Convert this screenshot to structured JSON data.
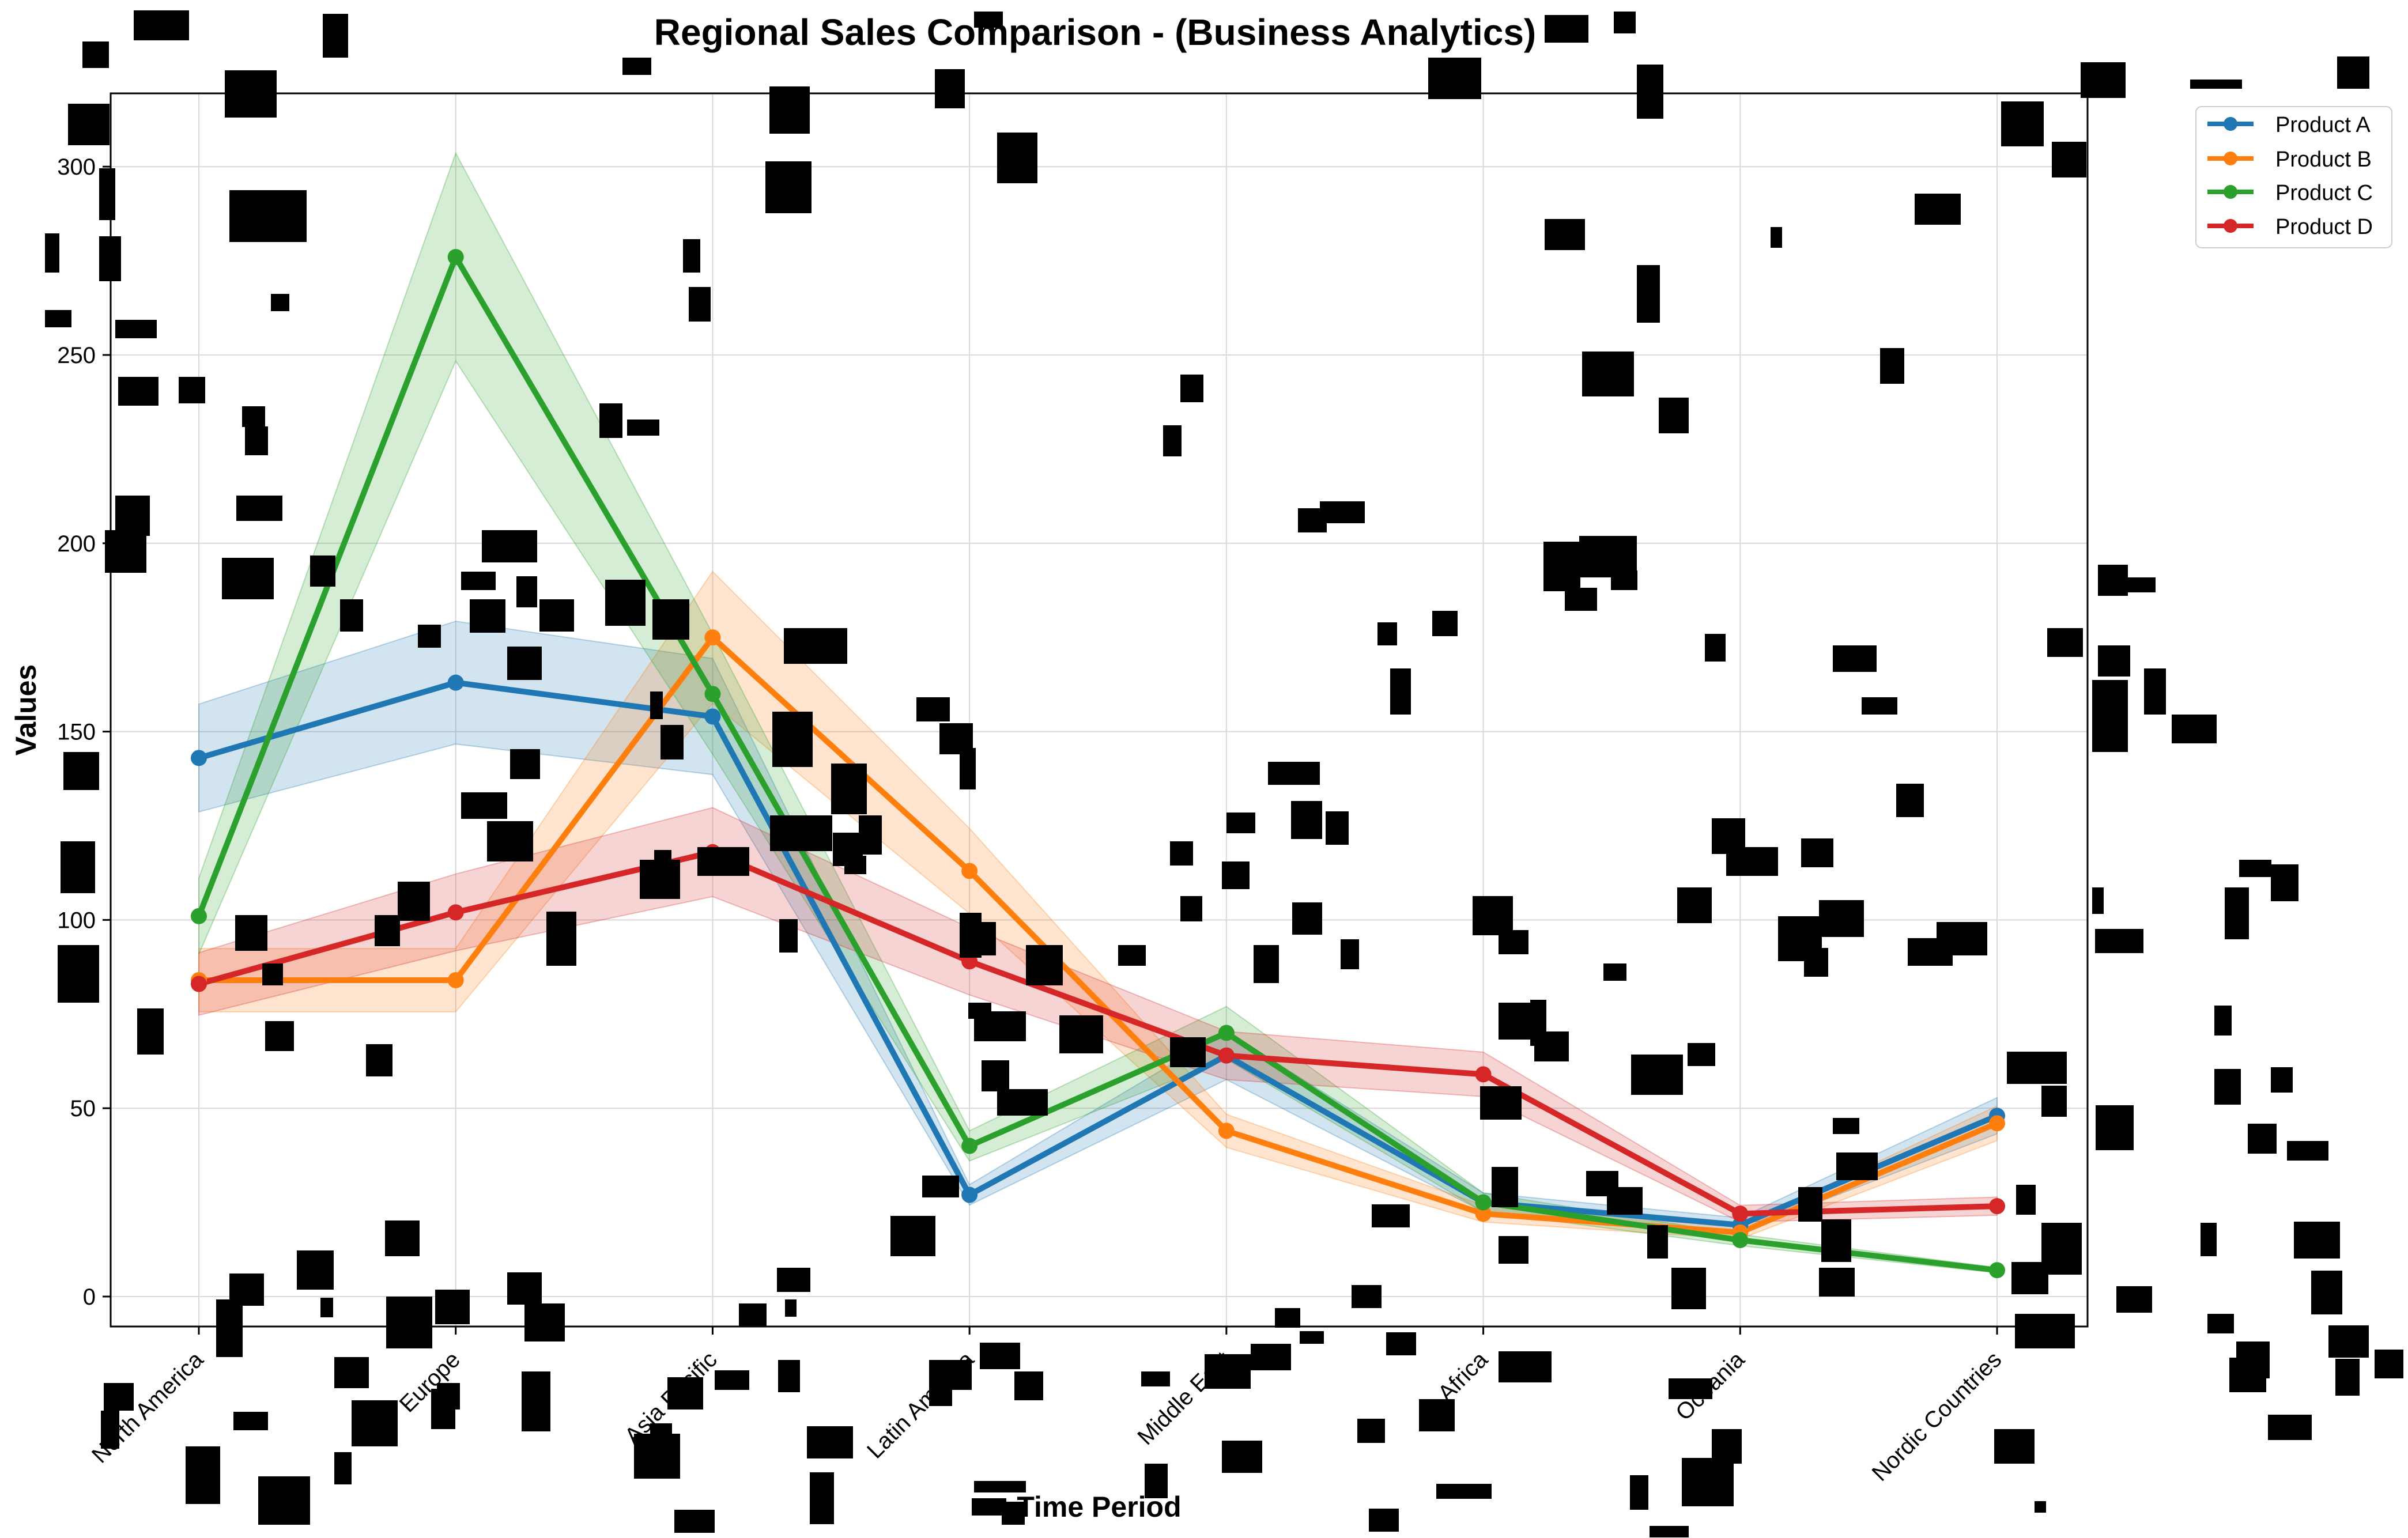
{
  "chart_data": {
    "type": "line",
    "title": "Regional Sales Comparison - (Business Analytics)",
    "xlabel": "Time Period",
    "ylabel": "Values",
    "categories": [
      "North America",
      "Europe",
      "Asia Pacific",
      "Latin America",
      "Middle East",
      "Africa",
      "Oceania",
      "Nordic Countries"
    ],
    "ylim": [
      -8,
      320
    ],
    "yticks": [
      0,
      50,
      100,
      150,
      200,
      250,
      300
    ],
    "grid": true,
    "legend_position": "top-right",
    "confidence_band": true,
    "series": [
      {
        "name": "Product A",
        "color": "#1f77b4",
        "values": [
          143,
          163,
          154,
          27,
          64,
          25,
          19,
          48
        ]
      },
      {
        "name": "Product B",
        "color": "#ff7f0e",
        "values": [
          84,
          84,
          175,
          113,
          44,
          22,
          17,
          46
        ]
      },
      {
        "name": "Product C",
        "color": "#2ca02c",
        "values": [
          101,
          276,
          160,
          40,
          70,
          25,
          15,
          7
        ]
      },
      {
        "name": "Product D",
        "color": "#d62728",
        "values": [
          83,
          102,
          118,
          89,
          64,
          59,
          22,
          24
        ]
      }
    ]
  }
}
